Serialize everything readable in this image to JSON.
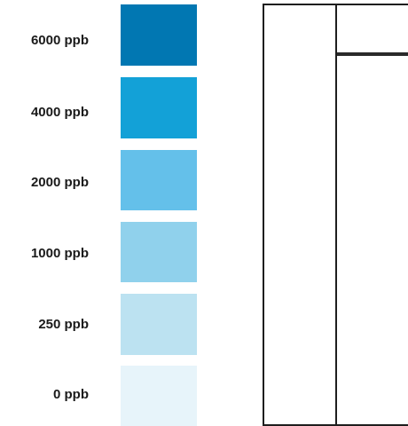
{
  "legend": {
    "items": [
      {
        "label": "6000 ppb",
        "color": "#0177b2"
      },
      {
        "label": "4000 ppb",
        "color": "#13a1d7"
      },
      {
        "label": "2000 ppb",
        "color": "#64c0ea"
      },
      {
        "label": "1000 ppb",
        "color": "#90d1ec"
      },
      {
        "label": "250 ppb",
        "color": "#bce2f1"
      },
      {
        "label": "0 ppb",
        "color": "#e7f4fa"
      }
    ]
  }
}
